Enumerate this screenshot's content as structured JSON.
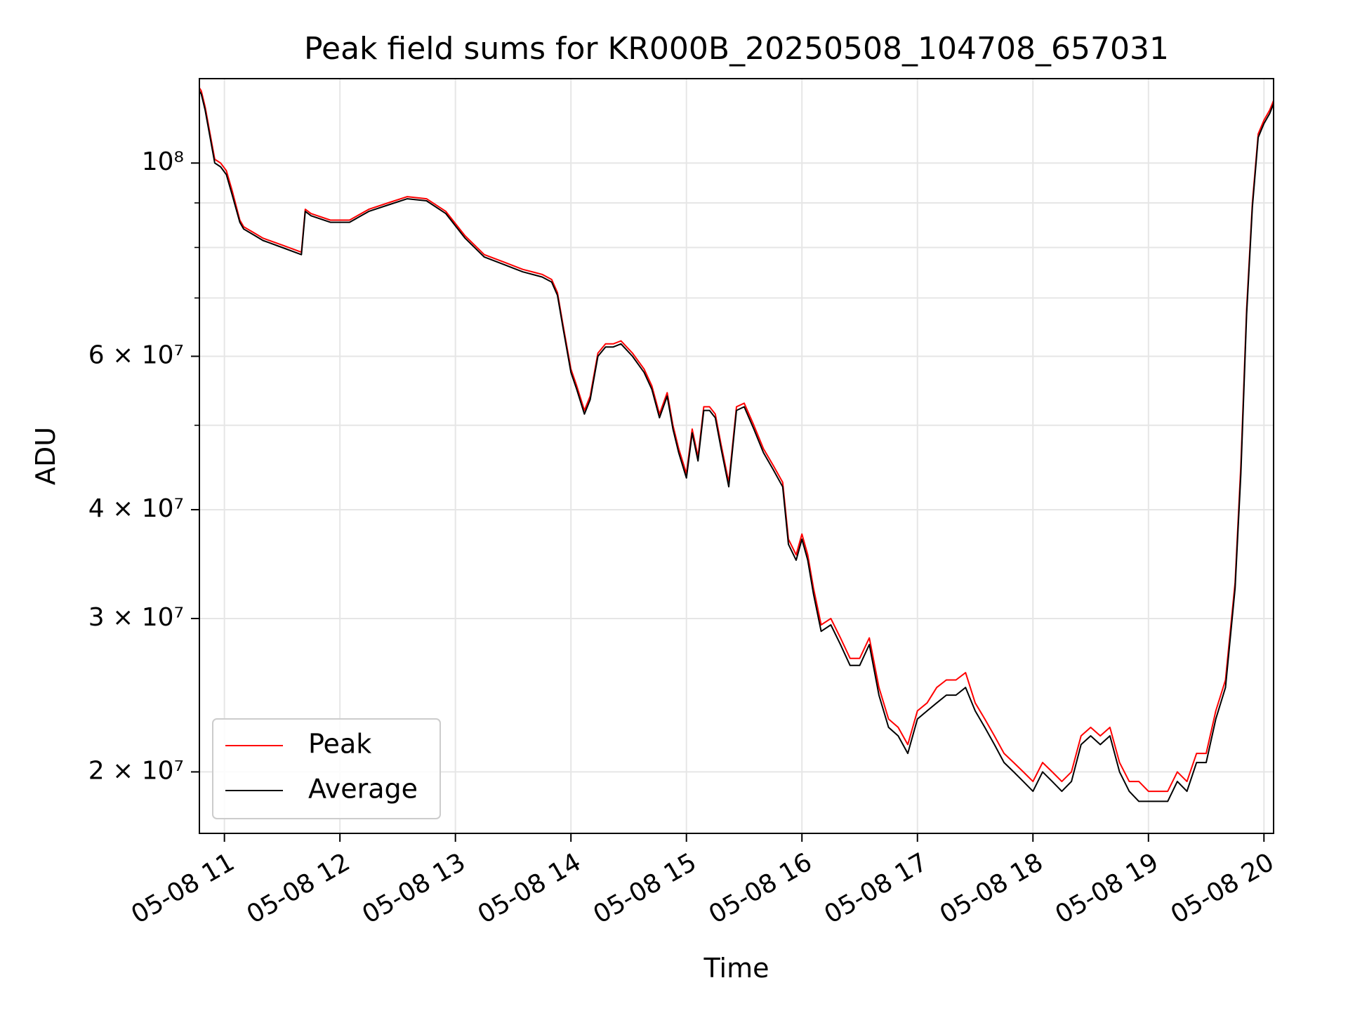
{
  "chart_data": {
    "type": "line",
    "title": "Peak field sums for KR000B_20250508_104708_657031",
    "xlabel": "Time",
    "ylabel": "ADU",
    "x_range": [
      "05-08 10:47",
      "05-08 20:05"
    ],
    "y_scale": "log",
    "ylim": [
      17000000,
      125000000
    ],
    "grid": true,
    "legend_position": "lower-left",
    "x_ticks": [
      {
        "value": "05-08 11:00",
        "label": "05-08 11"
      },
      {
        "value": "05-08 12:00",
        "label": "05-08 12"
      },
      {
        "value": "05-08 13:00",
        "label": "05-08 13"
      },
      {
        "value": "05-08 14:00",
        "label": "05-08 14"
      },
      {
        "value": "05-08 15:00",
        "label": "05-08 15"
      },
      {
        "value": "05-08 16:00",
        "label": "05-08 16"
      },
      {
        "value": "05-08 17:00",
        "label": "05-08 17"
      },
      {
        "value": "05-08 18:00",
        "label": "05-08 18"
      },
      {
        "value": "05-08 19:00",
        "label": "05-08 19"
      },
      {
        "value": "05-08 20:00",
        "label": "05-08 20"
      }
    ],
    "y_ticks_major": [
      {
        "value": 20000000,
        "label": "2 × 10⁷"
      },
      {
        "value": 30000000,
        "label": "3 × 10⁷"
      },
      {
        "value": 40000000,
        "label": "4 × 10⁷"
      },
      {
        "value": 60000000,
        "label": "6 × 10⁷"
      },
      {
        "value": 100000000,
        "label": "10⁸"
      }
    ],
    "y_ticks_minor": [
      50000000,
      70000000,
      80000000,
      90000000
    ],
    "series": [
      {
        "name": "Peak",
        "color": "#ff0000",
        "x": [
          "05-08 10:47",
          "05-08 10:48",
          "05-08 10:50",
          "05-08 10:55",
          "05-08 10:58",
          "05-08 11:01",
          "05-08 11:04",
          "05-08 11:08",
          "05-08 11:10",
          "05-08 11:12",
          "05-08 11:14",
          "05-08 11:16",
          "05-08 11:20",
          "05-08 11:30",
          "05-08 11:40",
          "05-08 11:42",
          "05-08 11:45",
          "05-08 11:55",
          "05-08 12:05",
          "05-08 12:15",
          "05-08 12:25",
          "05-08 12:35",
          "05-08 12:45",
          "05-08 12:55",
          "05-08 13:05",
          "05-08 13:15",
          "05-08 13:25",
          "05-08 13:35",
          "05-08 13:45",
          "05-08 13:50",
          "05-08 13:53",
          "05-08 13:56",
          "05-08 14:00",
          "05-08 14:03",
          "05-08 14:07",
          "05-08 14:10",
          "05-08 14:14",
          "05-08 14:18",
          "05-08 14:22",
          "05-08 14:26",
          "05-08 14:32",
          "05-08 14:38",
          "05-08 14:42",
          "05-08 14:46",
          "05-08 14:50",
          "05-08 14:53",
          "05-08 14:56",
          "05-08 15:00",
          "05-08 15:03",
          "05-08 15:06",
          "05-08 15:09",
          "05-08 15:12",
          "05-08 15:15",
          "05-08 15:18",
          "05-08 15:22",
          "05-08 15:26",
          "05-08 15:30",
          "05-08 15:35",
          "05-08 15:40",
          "05-08 15:45",
          "05-08 15:50",
          "05-08 15:53",
          "05-08 15:57",
          "05-08 16:00",
          "05-08 16:03",
          "05-08 16:06",
          "05-08 16:10",
          "05-08 16:15",
          "05-08 16:20",
          "05-08 16:25",
          "05-08 16:30",
          "05-08 16:35",
          "05-08 16:40",
          "05-08 16:45",
          "05-08 16:50",
          "05-08 16:55",
          "05-08 17:00",
          "05-08 17:05",
          "05-08 17:10",
          "05-08 17:15",
          "05-08 17:20",
          "05-08 17:25",
          "05-08 17:30",
          "05-08 17:35",
          "05-08 17:40",
          "05-08 17:45",
          "05-08 17:50",
          "05-08 17:55",
          "05-08 18:00",
          "05-08 18:05",
          "05-08 18:10",
          "05-08 18:15",
          "05-08 18:20",
          "05-08 18:25",
          "05-08 18:30",
          "05-08 18:35",
          "05-08 18:40",
          "05-08 18:45",
          "05-08 18:50",
          "05-08 18:55",
          "05-08 19:00",
          "05-08 19:05",
          "05-08 19:10",
          "05-08 19:15",
          "05-08 19:20",
          "05-08 19:25",
          "05-08 19:30",
          "05-08 19:35",
          "05-08 19:40",
          "05-08 19:45",
          "05-08 19:48",
          "05-08 19:51",
          "05-08 19:54",
          "05-08 19:57",
          "05-08 20:00",
          "05-08 20:03",
          "05-08 20:05"
        ],
        "values": [
          122000000,
          121000000,
          116000000,
          101000000,
          100000000,
          98000000,
          93000000,
          86000000,
          84500000,
          84000000,
          83500000,
          83000000,
          82000000,
          80500000,
          79000000,
          88500000,
          87500000,
          86000000,
          86000000,
          88500000,
          90000000,
          91500000,
          91000000,
          88000000,
          82500000,
          78500000,
          77000000,
          75500000,
          74500000,
          73500000,
          71000000,
          65000000,
          58000000,
          55500000,
          52000000,
          54000000,
          60500000,
          62000000,
          62000000,
          62500000,
          60500000,
          58000000,
          55500000,
          51500000,
          54500000,
          50000000,
          47000000,
          44000000,
          49500000,
          46000000,
          52500000,
          52500000,
          51500000,
          47500000,
          43000000,
          52500000,
          53000000,
          50000000,
          47000000,
          45000000,
          43000000,
          37000000,
          35500000,
          37500000,
          35500000,
          32500000,
          29500000,
          30000000,
          28500000,
          27000000,
          27000000,
          28500000,
          25000000,
          23000000,
          22500000,
          21500000,
          23500000,
          24000000,
          25000000,
          25500000,
          25500000,
          26000000,
          24000000,
          23000000,
          22000000,
          21000000,
          20500000,
          20000000,
          19500000,
          20500000,
          20000000,
          19500000,
          20000000,
          22000000,
          22500000,
          22000000,
          22500000,
          20500000,
          19500000,
          19500000,
          19000000,
          19000000,
          19000000,
          20000000,
          19500000,
          21000000,
          21000000,
          23500000,
          25500000,
          33000000,
          45000000,
          68000000,
          90000000,
          108000000,
          112000000,
          115000000,
          118000000
        ]
      },
      {
        "name": "Average",
        "color": "#000000",
        "x": [
          "05-08 10:47",
          "05-08 10:48",
          "05-08 10:50",
          "05-08 10:55",
          "05-08 10:58",
          "05-08 11:01",
          "05-08 11:04",
          "05-08 11:08",
          "05-08 11:10",
          "05-08 11:12",
          "05-08 11:14",
          "05-08 11:16",
          "05-08 11:20",
          "05-08 11:30",
          "05-08 11:40",
          "05-08 11:42",
          "05-08 11:45",
          "05-08 11:55",
          "05-08 12:05",
          "05-08 12:15",
          "05-08 12:25",
          "05-08 12:35",
          "05-08 12:45",
          "05-08 12:55",
          "05-08 13:05",
          "05-08 13:15",
          "05-08 13:25",
          "05-08 13:35",
          "05-08 13:45",
          "05-08 13:50",
          "05-08 13:53",
          "05-08 13:56",
          "05-08 14:00",
          "05-08 14:03",
          "05-08 14:07",
          "05-08 14:10",
          "05-08 14:14",
          "05-08 14:18",
          "05-08 14:22",
          "05-08 14:26",
          "05-08 14:32",
          "05-08 14:38",
          "05-08 14:42",
          "05-08 14:46",
          "05-08 14:50",
          "05-08 14:53",
          "05-08 14:56",
          "05-08 15:00",
          "05-08 15:03",
          "05-08 15:06",
          "05-08 15:09",
          "05-08 15:12",
          "05-08 15:15",
          "05-08 15:18",
          "05-08 15:22",
          "05-08 15:26",
          "05-08 15:30",
          "05-08 15:35",
          "05-08 15:40",
          "05-08 15:45",
          "05-08 15:50",
          "05-08 15:53",
          "05-08 15:57",
          "05-08 16:00",
          "05-08 16:03",
          "05-08 16:06",
          "05-08 16:10",
          "05-08 16:15",
          "05-08 16:20",
          "05-08 16:25",
          "05-08 16:30",
          "05-08 16:35",
          "05-08 16:40",
          "05-08 16:45",
          "05-08 16:50",
          "05-08 16:55",
          "05-08 17:00",
          "05-08 17:05",
          "05-08 17:10",
          "05-08 17:15",
          "05-08 17:20",
          "05-08 17:25",
          "05-08 17:30",
          "05-08 17:35",
          "05-08 17:40",
          "05-08 17:45",
          "05-08 17:50",
          "05-08 17:55",
          "05-08 18:00",
          "05-08 18:05",
          "05-08 18:10",
          "05-08 18:15",
          "05-08 18:20",
          "05-08 18:25",
          "05-08 18:30",
          "05-08 18:35",
          "05-08 18:40",
          "05-08 18:45",
          "05-08 18:50",
          "05-08 18:55",
          "05-08 19:00",
          "05-08 19:05",
          "05-08 19:10",
          "05-08 19:15",
          "05-08 19:20",
          "05-08 19:25",
          "05-08 19:30",
          "05-08 19:35",
          "05-08 19:40",
          "05-08 19:45",
          "05-08 19:48",
          "05-08 19:51",
          "05-08 19:54",
          "05-08 19:57",
          "05-08 20:00",
          "05-08 20:03",
          "05-08 20:05"
        ],
        "values": [
          121000000,
          120000000,
          115000000,
          100000000,
          99000000,
          97000000,
          92000000,
          85500000,
          84000000,
          83500000,
          83000000,
          82500000,
          81500000,
          80000000,
          78500000,
          88000000,
          87000000,
          85500000,
          85500000,
          88000000,
          89500000,
          91000000,
          90500000,
          87500000,
          82000000,
          78000000,
          76500000,
          75000000,
          74000000,
          73000000,
          70500000,
          64500000,
          57500000,
          55000000,
          51500000,
          53500000,
          60000000,
          61500000,
          61500000,
          62000000,
          60000000,
          57500000,
          55000000,
          51000000,
          54000000,
          49500000,
          46500000,
          43500000,
          49000000,
          45500000,
          52000000,
          52000000,
          51000000,
          47000000,
          42500000,
          52000000,
          52500000,
          49500000,
          46500000,
          44500000,
          42500000,
          36500000,
          35000000,
          37000000,
          35000000,
          32000000,
          29000000,
          29500000,
          28000000,
          26500000,
          26500000,
          28000000,
          24500000,
          22500000,
          22000000,
          21000000,
          23000000,
          23500000,
          24000000,
          24500000,
          24500000,
          25000000,
          23500000,
          22500000,
          21500000,
          20500000,
          20000000,
          19500000,
          19000000,
          20000000,
          19500000,
          19000000,
          19500000,
          21500000,
          22000000,
          21500000,
          22000000,
          20000000,
          19000000,
          18500000,
          18500000,
          18500000,
          18500000,
          19500000,
          19000000,
          20500000,
          20500000,
          23000000,
          25000000,
          32500000,
          44000000,
          67000000,
          89000000,
          107000000,
          111000000,
          114000000,
          117000000
        ]
      }
    ]
  }
}
